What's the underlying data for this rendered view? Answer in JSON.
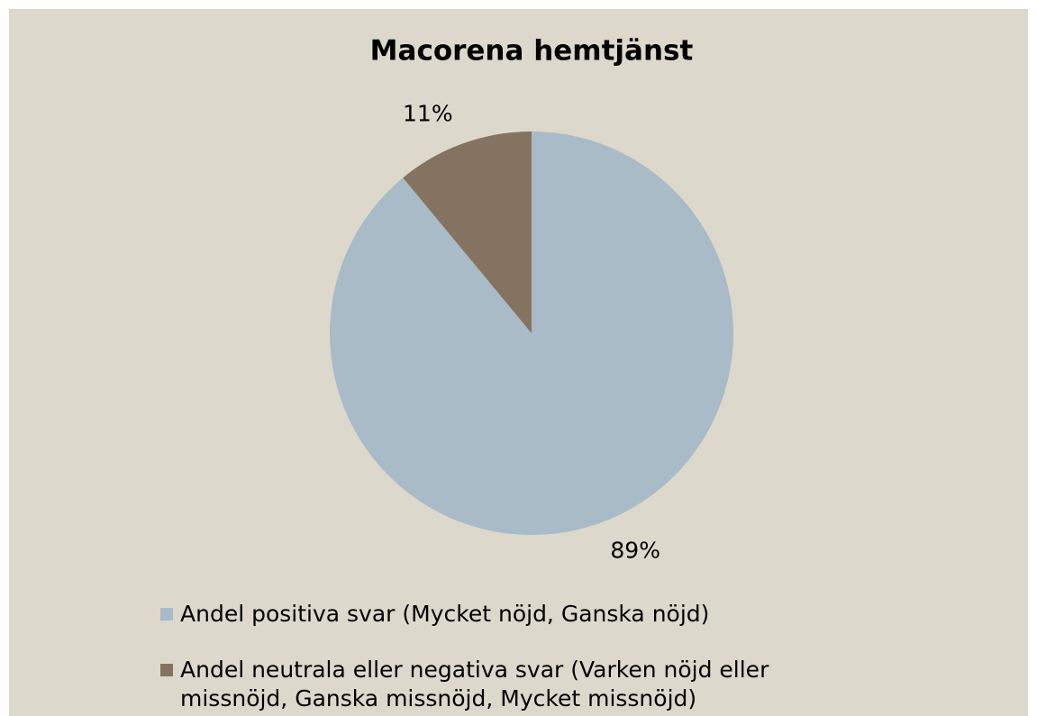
{
  "chart_data": {
    "type": "pie",
    "title": "Macorena hemtjänst",
    "categories": [
      "Andel positiva svar (Mycket nöjd, Ganska nöjd)",
      "Andel neutrala eller negativa svar (Varken nöjd eller missnöjd, Ganska missnöjd, Mycket missnöjd)"
    ],
    "values": [
      89,
      11
    ],
    "value_labels": [
      "89%",
      "11%"
    ],
    "colors": [
      "#a8bbc7",
      "#857362"
    ],
    "legend": "bottom"
  }
}
